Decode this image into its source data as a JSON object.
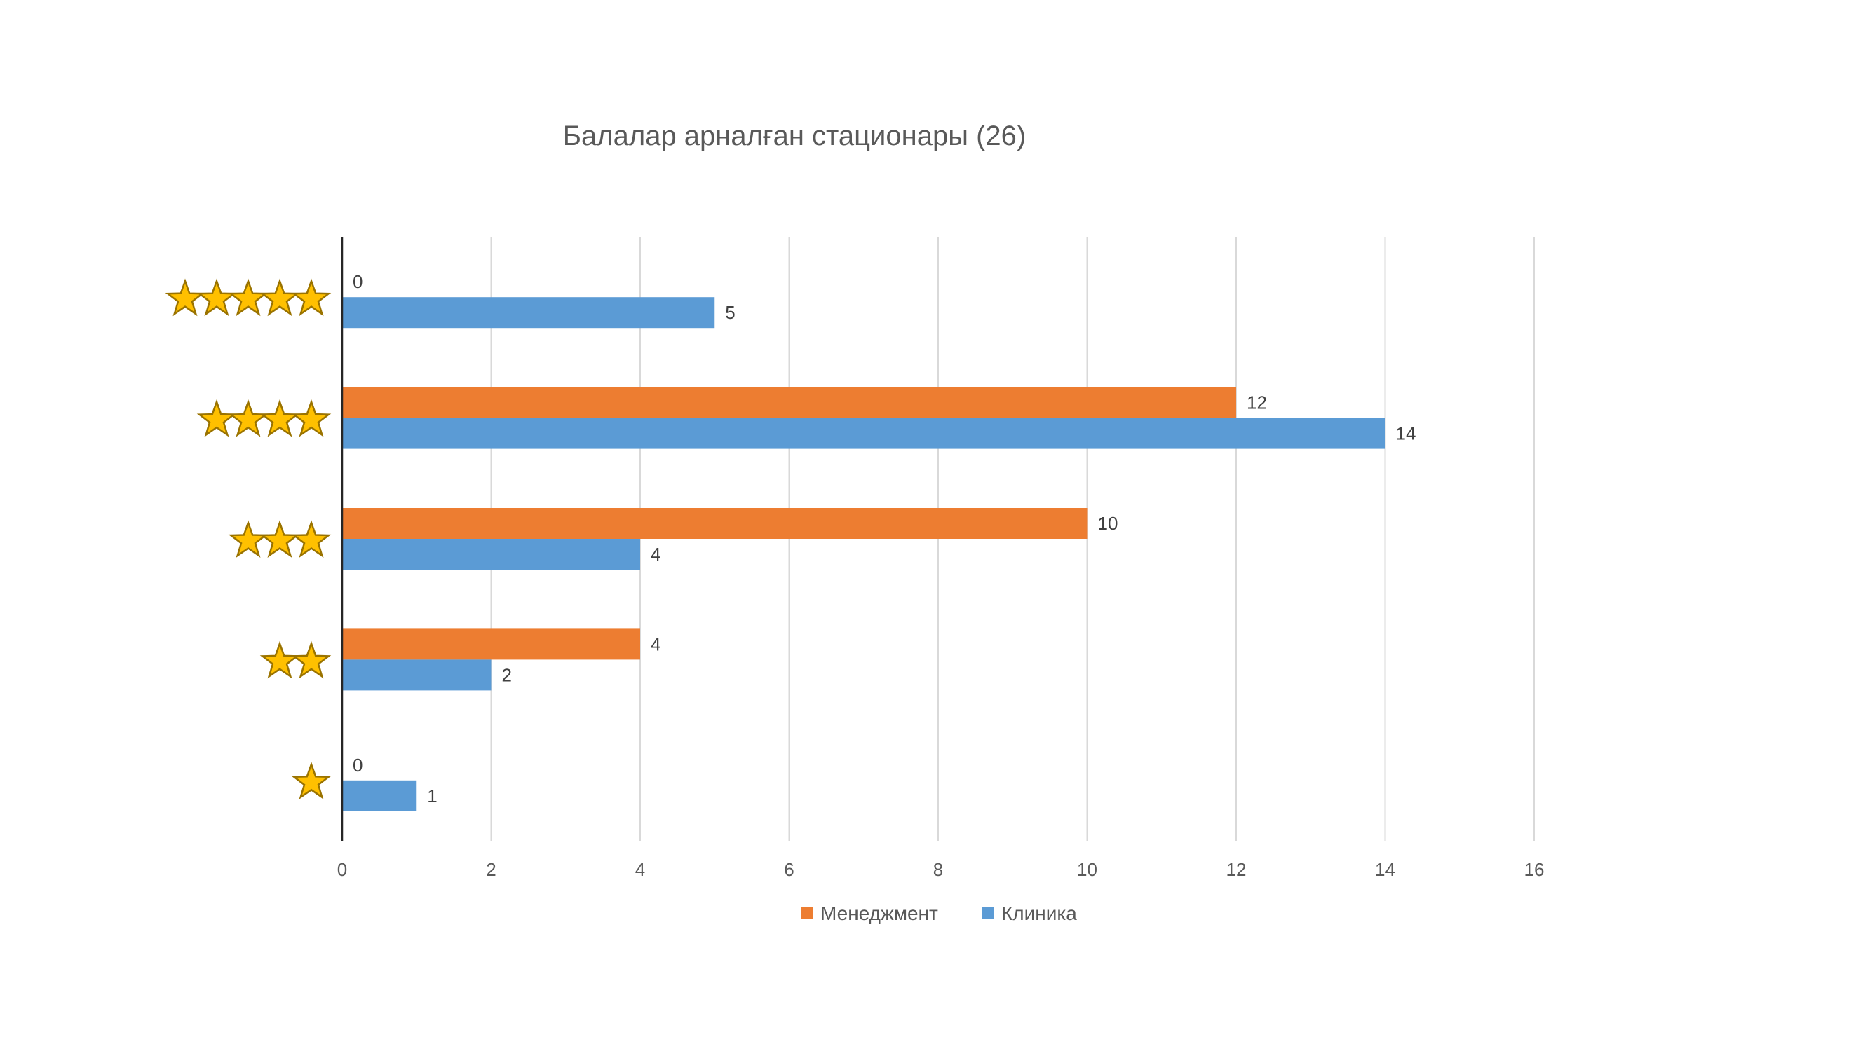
{
  "chart_data": {
    "type": "bar",
    "orientation": "horizontal",
    "title": "Балалар арналған стационары (26)",
    "categories": [
      "5 stars",
      "4 stars",
      "3 stars",
      "2 stars",
      "1 star"
    ],
    "category_star_counts": [
      5,
      4,
      3,
      2,
      1
    ],
    "series": [
      {
        "name": "Менеджмент",
        "color": "#ed7d31",
        "values": [
          0,
          12,
          10,
          4,
          0
        ]
      },
      {
        "name": "Клиника",
        "color": "#5b9bd5",
        "values": [
          5,
          14,
          4,
          2,
          1
        ]
      }
    ],
    "xlim": [
      0,
      16
    ],
    "xticks": [
      "0",
      "2",
      "4",
      "6",
      "8",
      "10",
      "12",
      "14",
      "16"
    ],
    "grid": true,
    "data_labels": true,
    "legend_position": "bottom"
  },
  "icons": {
    "category_marker": "star-icon"
  }
}
